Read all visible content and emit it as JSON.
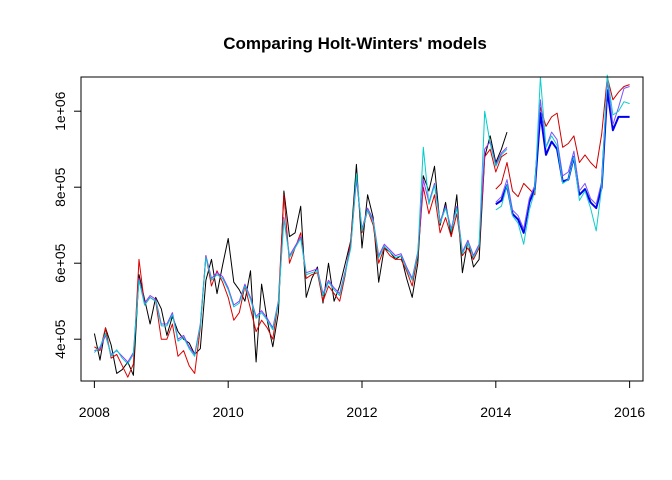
{
  "chart_data": {
    "type": "line",
    "title": "Comparing Holt-Winters' models",
    "xlabel": "",
    "ylabel": "",
    "xlim": [
      2007.8,
      2016.2
    ],
    "ylim": [
      290000,
      1090000
    ],
    "x_ticks": [
      2008,
      2010,
      2012,
      2014,
      2016
    ],
    "x_tick_labels": [
      "2008",
      "2010",
      "2012",
      "2014",
      "2016"
    ],
    "y_ticks": [
      400000,
      600000,
      800000,
      1000000
    ],
    "y_tick_labels": [
      "4e+05",
      "6e+05",
      "8e+05",
      "1e+06"
    ],
    "grid": false,
    "legend": "none",
    "series": [
      {
        "color": "#000000",
        "width": 1,
        "x_start": 2008.0,
        "values": [
          415000,
          345000,
          430000,
          385000,
          310000,
          320000,
          340000,
          305000,
          570000,
          505000,
          440000,
          510000,
          480000,
          410000,
          460000,
          420000,
          400000,
          390000,
          360000,
          375000,
          555000,
          610000,
          520000,
          595000,
          665000,
          550000,
          530000,
          500000,
          580000,
          340000,
          545000,
          450000,
          380000,
          470000,
          790000,
          670000,
          680000,
          750000,
          510000,
          560000,
          590000,
          495000,
          600000,
          500000,
          540000,
          600000,
          660000,
          860000,
          640000,
          780000,
          720000,
          550000,
          640000,
          630000,
          610000,
          620000,
          560000,
          510000,
          600000,
          830000,
          790000,
          855000,
          700000,
          760000,
          670000,
          780000,
          575000,
          660000,
          590000,
          610000,
          880000,
          935000,
          865000,
          900000,
          945000
        ]
      },
      {
        "color": "#dd0000",
        "width": 1,
        "x_start": 2008.0,
        "values": [
          380000,
          370000,
          430000,
          350000,
          360000,
          330000,
          300000,
          335000,
          610000,
          490000,
          510000,
          500000,
          400000,
          400000,
          440000,
          355000,
          370000,
          330000,
          310000,
          430000,
          620000,
          540000,
          580000,
          550000,
          510000,
          450000,
          470000,
          540000,
          480000,
          420000,
          450000,
          430000,
          400000,
          500000,
          780000,
          600000,
          640000,
          680000,
          560000,
          570000,
          575000,
          500000,
          540000,
          520000,
          500000,
          570000,
          660000,
          830000,
          680000,
          740000,
          700000,
          600000,
          640000,
          620000,
          610000,
          610000,
          580000,
          540000,
          620000,
          800000,
          730000,
          780000,
          680000,
          720000,
          670000,
          730000,
          620000,
          640000,
          610000,
          640000,
          880000,
          900000,
          840000,
          880000,
          890000
        ]
      },
      {
        "color": "#9933ff",
        "width": 1,
        "x_start": 2008.0,
        "values": [
          370000,
          375000,
          410000,
          360000,
          370000,
          355000,
          340000,
          365000,
          560000,
          495000,
          515000,
          505000,
          440000,
          440000,
          470000,
          400000,
          410000,
          380000,
          360000,
          440000,
          620000,
          560000,
          575000,
          565000,
          535000,
          490000,
          500000,
          545000,
          510000,
          460000,
          475000,
          455000,
          430000,
          500000,
          720000,
          620000,
          645000,
          670000,
          575000,
          580000,
          585000,
          520000,
          555000,
          535000,
          520000,
          580000,
          645000,
          820000,
          690000,
          745000,
          715000,
          620000,
          650000,
          635000,
          620000,
          625000,
          590000,
          560000,
          630000,
          820000,
          760000,
          810000,
          710000,
          750000,
          690000,
          750000,
          630000,
          660000,
          620000,
          650000,
          900000,
          920000,
          860000,
          890000,
          905000
        ]
      },
      {
        "color": "#00cccc",
        "width": 1,
        "x_start": 2008.0,
        "values": [
          365000,
          380000,
          415000,
          355000,
          372000,
          350000,
          335000,
          360000,
          555000,
          490000,
          510000,
          500000,
          435000,
          435000,
          465000,
          395000,
          405000,
          375000,
          355000,
          435000,
          615000,
          555000,
          570000,
          560000,
          530000,
          485000,
          495000,
          540000,
          505000,
          455000,
          470000,
          450000,
          425000,
          495000,
          715000,
          615000,
          640000,
          665000,
          570000,
          575000,
          580000,
          515000,
          550000,
          530000,
          515000,
          575000,
          640000,
          835000,
          685000,
          740000,
          710000,
          615000,
          645000,
          630000,
          615000,
          620000,
          585000,
          555000,
          625000,
          905000,
          755000,
          805000,
          705000,
          745000,
          685000,
          745000,
          625000,
          655000,
          615000,
          645000,
          1000000,
          915000,
          855000,
          885000,
          900000
        ]
      },
      {
        "color": "#cc0000",
        "width": 1,
        "x_start": 2014.0,
        "values": [
          795000,
          810000,
          865000,
          790000,
          775000,
          810000,
          795000,
          780000,
          1010000,
          960000,
          985000,
          995000,
          905000,
          915000,
          935000,
          865000,
          885000,
          865000,
          850000,
          940000,
          1090000,
          1030000,
          1050000,
          1065000,
          1070000
        ]
      },
      {
        "color": "#0000ee",
        "width": 2,
        "x_start": 2014.0,
        "values": [
          755000,
          765000,
          805000,
          730000,
          715000,
          680000,
          760000,
          795000,
          995000,
          885000,
          920000,
          900000,
          815000,
          820000,
          880000,
          780000,
          795000,
          760000,
          745000,
          800000,
          1055000,
          950000,
          985000,
          985000,
          985000
        ]
      },
      {
        "color": "#7755ff",
        "width": 1,
        "x_start": 2014.0,
        "values": [
          760000,
          775000,
          820000,
          740000,
          725000,
          690000,
          770000,
          805000,
          1030000,
          905000,
          945000,
          925000,
          830000,
          840000,
          895000,
          790000,
          810000,
          770000,
          755000,
          815000,
          1080000,
          965000,
          1010000,
          1060000,
          1065000
        ]
      },
      {
        "color": "#11cccc",
        "width": 1,
        "x_start": 2014.0,
        "values": [
          740000,
          750000,
          805000,
          725000,
          705000,
          650000,
          740000,
          790000,
          1090000,
          905000,
          935000,
          910000,
          810000,
          820000,
          880000,
          765000,
          790000,
          745000,
          685000,
          800000,
          1095000,
          990000,
          1000000,
          1025000,
          1020000
        ]
      }
    ]
  }
}
